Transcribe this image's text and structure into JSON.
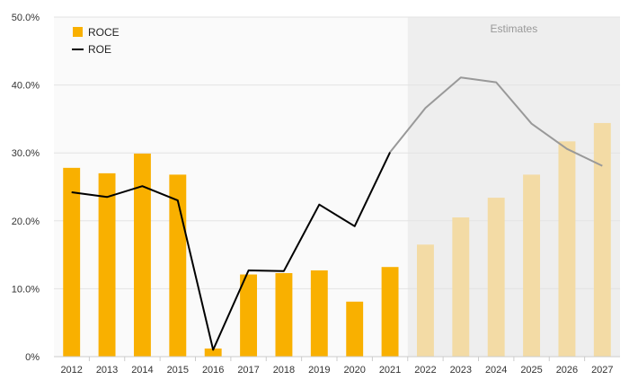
{
  "chart_data": {
    "type": "bar",
    "categories": [
      "2012",
      "2013",
      "2014",
      "2015",
      "2016",
      "2017",
      "2018",
      "2019",
      "2020",
      "2021",
      "2022",
      "2023",
      "2024",
      "2025",
      "2026",
      "2027"
    ],
    "series": [
      {
        "name": "ROCE",
        "type": "bar",
        "values": [
          27.8,
          27.0,
          29.9,
          26.8,
          1.2,
          12.1,
          12.3,
          12.7,
          8.1,
          13.2,
          16.5,
          20.5,
          23.4,
          26.8,
          31.7,
          34.4
        ]
      },
      {
        "name": "ROE",
        "type": "line",
        "values": [
          24.2,
          23.5,
          25.1,
          23.0,
          1.0,
          12.7,
          12.6,
          22.4,
          19.2,
          30.1,
          36.6,
          41.1,
          40.4,
          34.3,
          30.6,
          28.1
        ]
      }
    ],
    "estimates_from": "2021",
    "annotation": "Estimates",
    "ylim": [
      0,
      50
    ],
    "yticks": [
      "0%",
      "10.0%",
      "20.0%",
      "30.0%",
      "40.0%",
      "50.0%"
    ],
    "xlabel": "",
    "ylabel": "",
    "grid": true,
    "legend_position": "top-left",
    "colors": {
      "roce": "#f9b000",
      "roce_estimate": "#f3dba5",
      "roe": "#000000",
      "roe_estimate": "#999999",
      "estimates_bg": "#eeeeee",
      "plot_bg": "#fafafa",
      "grid": "#e3e3e3",
      "axis_text": "#333333",
      "annotation_text": "#999999"
    }
  }
}
